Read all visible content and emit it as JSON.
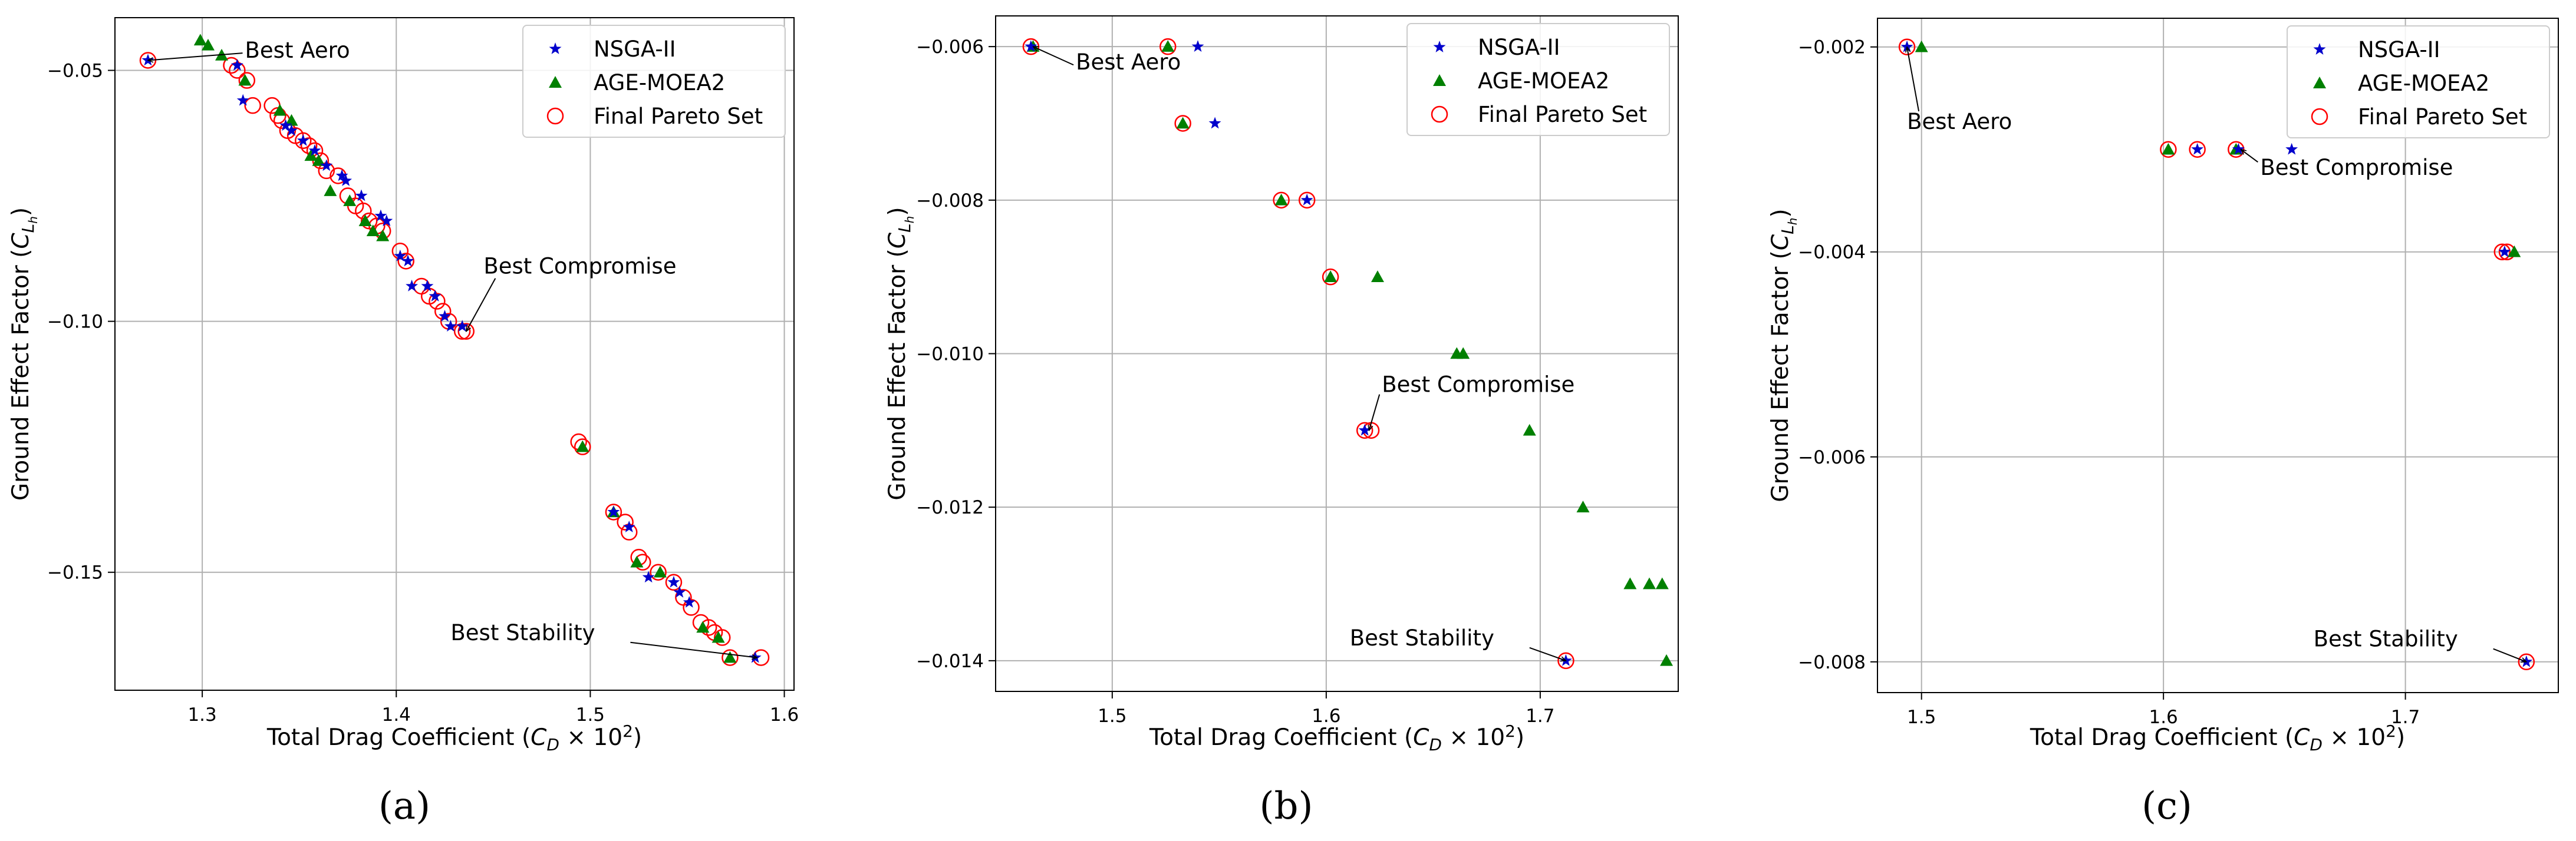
{
  "chart_data": [
    {
      "type": "scatter",
      "panel_label": "(a)",
      "xlabel": "Total Drag Coefficient (C_D × 10²)",
      "ylabel": "Ground Effect Factor (C_{L_h})",
      "xlim": [
        1.255,
        1.605
      ],
      "ylim": [
        -0.1735,
        -0.0395
      ],
      "xticks": [
        1.3,
        1.4,
        1.5,
        1.6
      ],
      "yticks": [
        -0.05,
        -0.1,
        -0.15
      ],
      "ytick_labels": [
        "−0.05",
        "−0.10",
        "−0.15"
      ],
      "grid": true,
      "legend": {
        "position": "top-right",
        "entries": [
          "NSGA-II",
          "AGE-MOEA2",
          "Final Pareto Set"
        ]
      },
      "series": [
        {
          "name": "NSGA-II",
          "marker": "star",
          "color": "#0000cc",
          "points": [
            [
              1.272,
              -0.048
            ],
            [
              1.318,
              -0.049
            ],
            [
              1.321,
              -0.056
            ],
            [
              1.343,
              -0.061
            ],
            [
              1.346,
              -0.062
            ],
            [
              1.352,
              -0.064
            ],
            [
              1.358,
              -0.066
            ],
            [
              1.364,
              -0.069
            ],
            [
              1.372,
              -0.071
            ],
            [
              1.374,
              -0.072
            ],
            [
              1.382,
              -0.075
            ],
            [
              1.392,
              -0.079
            ],
            [
              1.395,
              -0.08
            ],
            [
              1.402,
              -0.087
            ],
            [
              1.406,
              -0.088
            ],
            [
              1.408,
              -0.093
            ],
            [
              1.416,
              -0.093
            ],
            [
              1.42,
              -0.095
            ],
            [
              1.425,
              -0.099
            ],
            [
              1.428,
              -0.101
            ],
            [
              1.434,
              -0.101
            ],
            [
              1.512,
              -0.138
            ],
            [
              1.52,
              -0.141
            ],
            [
              1.53,
              -0.151
            ],
            [
              1.543,
              -0.152
            ],
            [
              1.546,
              -0.154
            ],
            [
              1.551,
              -0.156
            ],
            [
              1.585,
              -0.167
            ]
          ]
        },
        {
          "name": "AGE-MOEA2",
          "marker": "triangle",
          "color": "#008000",
          "points": [
            [
              1.299,
              -0.044
            ],
            [
              1.303,
              -0.045
            ],
            [
              1.31,
              -0.047
            ],
            [
              1.322,
              -0.052
            ],
            [
              1.34,
              -0.058
            ],
            [
              1.346,
              -0.06
            ],
            [
              1.356,
              -0.067
            ],
            [
              1.36,
              -0.068
            ],
            [
              1.366,
              -0.074
            ],
            [
              1.376,
              -0.076
            ],
            [
              1.384,
              -0.08
            ],
            [
              1.388,
              -0.082
            ],
            [
              1.393,
              -0.083
            ],
            [
              1.496,
              -0.125
            ],
            [
              1.512,
              -0.138
            ],
            [
              1.524,
              -0.148
            ],
            [
              1.536,
              -0.15
            ],
            [
              1.558,
              -0.161
            ],
            [
              1.566,
              -0.163
            ],
            [
              1.572,
              -0.167
            ]
          ]
        },
        {
          "name": "Final Pareto Set",
          "marker": "circle",
          "color": "#ff0000",
          "points": [
            [
              1.272,
              -0.048
            ],
            [
              1.315,
              -0.049
            ],
            [
              1.318,
              -0.05
            ],
            [
              1.323,
              -0.052
            ],
            [
              1.326,
              -0.057
            ],
            [
              1.336,
              -0.057
            ],
            [
              1.339,
              -0.059
            ],
            [
              1.341,
              -0.06
            ],
            [
              1.344,
              -0.062
            ],
            [
              1.348,
              -0.063
            ],
            [
              1.352,
              -0.064
            ],
            [
              1.355,
              -0.065
            ],
            [
              1.358,
              -0.066
            ],
            [
              1.361,
              -0.068
            ],
            [
              1.364,
              -0.07
            ],
            [
              1.37,
              -0.071
            ],
            [
              1.375,
              -0.075
            ],
            [
              1.379,
              -0.077
            ],
            [
              1.383,
              -0.078
            ],
            [
              1.386,
              -0.08
            ],
            [
              1.39,
              -0.081
            ],
            [
              1.393,
              -0.082
            ],
            [
              1.402,
              -0.086
            ],
            [
              1.405,
              -0.088
            ],
            [
              1.413,
              -0.093
            ],
            [
              1.417,
              -0.095
            ],
            [
              1.421,
              -0.096
            ],
            [
              1.424,
              -0.098
            ],
            [
              1.427,
              -0.1
            ],
            [
              1.434,
              -0.102
            ],
            [
              1.436,
              -0.102
            ],
            [
              1.494,
              -0.124
            ],
            [
              1.496,
              -0.125
            ],
            [
              1.512,
              -0.138
            ],
            [
              1.518,
              -0.14
            ],
            [
              1.52,
              -0.142
            ],
            [
              1.525,
              -0.147
            ],
            [
              1.527,
              -0.148
            ],
            [
              1.535,
              -0.15
            ],
            [
              1.543,
              -0.152
            ],
            [
              1.548,
              -0.155
            ],
            [
              1.552,
              -0.157
            ],
            [
              1.557,
              -0.16
            ],
            [
              1.561,
              -0.161
            ],
            [
              1.564,
              -0.162
            ],
            [
              1.568,
              -0.163
            ],
            [
              1.572,
              -0.167
            ],
            [
              1.588,
              -0.167
            ]
          ]
        }
      ],
      "annotations": [
        {
          "text": "Best Aero",
          "point": [
            1.272,
            -0.048
          ],
          "text_at": [
            1.322,
            -0.0475
          ],
          "align": "start"
        },
        {
          "text": "Best Compromise",
          "point": [
            1.436,
            -0.102
          ],
          "text_at": [
            1.445,
            -0.0905
          ],
          "align": "start"
        },
        {
          "text": "Best Stability",
          "point": [
            1.586,
            -0.167
          ],
          "text_at": [
            1.428,
            -0.1635
          ],
          "align": "start"
        }
      ]
    },
    {
      "type": "scatter",
      "panel_label": "(b)",
      "xlabel": "Total Drag Coefficient (C_D × 10²)",
      "ylabel": "Ground Effect Factor (C_{L_h})",
      "xlim": [
        1.4455,
        1.7645
      ],
      "ylim": [
        -0.0144,
        -0.0056
      ],
      "xticks": [
        1.5,
        1.6,
        1.7
      ],
      "yticks": [
        -0.006,
        -0.008,
        -0.01,
        -0.012,
        -0.014
      ],
      "ytick_labels": [
        "−0.006",
        "−0.008",
        "−0.010",
        "−0.012",
        "−0.014"
      ],
      "grid": true,
      "legend": {
        "position": "top-right",
        "entries": [
          "NSGA-II",
          "AGE-MOEA2",
          "Final Pareto Set"
        ]
      },
      "series": [
        {
          "name": "NSGA-II",
          "marker": "star",
          "color": "#0000cc",
          "points": [
            [
              1.462,
              -0.006
            ],
            [
              1.54,
              -0.006
            ],
            [
              1.548,
              -0.007
            ],
            [
              1.591,
              -0.008
            ],
            [
              1.618,
              -0.011
            ],
            [
              1.712,
              -0.014
            ]
          ]
        },
        {
          "name": "AGE-MOEA2",
          "marker": "triangle",
          "color": "#008000",
          "points": [
            [
              1.463,
              -0.006
            ],
            [
              1.526,
              -0.006
            ],
            [
              1.533,
              -0.007
            ],
            [
              1.579,
              -0.008
            ],
            [
              1.602,
              -0.009
            ],
            [
              1.624,
              -0.009
            ],
            [
              1.661,
              -0.01
            ],
            [
              1.664,
              -0.01
            ],
            [
              1.695,
              -0.011
            ],
            [
              1.72,
              -0.012
            ],
            [
              1.742,
              -0.013
            ],
            [
              1.751,
              -0.013
            ],
            [
              1.757,
              -0.013
            ],
            [
              1.759,
              -0.014
            ]
          ]
        },
        {
          "name": "Final Pareto Set",
          "marker": "circle",
          "color": "#ff0000",
          "points": [
            [
              1.462,
              -0.006
            ],
            [
              1.526,
              -0.006
            ],
            [
              1.533,
              -0.007
            ],
            [
              1.579,
              -0.008
            ],
            [
              1.591,
              -0.008
            ],
            [
              1.602,
              -0.009
            ],
            [
              1.618,
              -0.011
            ],
            [
              1.621,
              -0.011
            ],
            [
              1.712,
              -0.014
            ]
          ]
        }
      ],
      "annotations": [
        {
          "text": "Best Aero",
          "point": [
            1.463,
            -0.006
          ],
          "text_at": [
            1.483,
            -0.0063
          ],
          "align": "start"
        },
        {
          "text": "Best Compromise",
          "point": [
            1.62,
            -0.011
          ],
          "text_at": [
            1.626,
            -0.0105
          ],
          "align": "start"
        },
        {
          "text": "Best Stability",
          "point": [
            1.712,
            -0.014
          ],
          "text_at": [
            1.611,
            -0.0138
          ],
          "align": "start"
        }
      ]
    },
    {
      "type": "scatter",
      "panel_label": "(c)",
      "xlabel": "Total Drag Coefficient (C_D × 10²)",
      "ylabel": "Ground Effect Factor (C_{L_h})",
      "xlim": [
        1.4818,
        1.7632
      ],
      "ylim": [
        -0.0083,
        -0.00172
      ],
      "xticks": [
        1.5,
        1.6,
        1.7
      ],
      "yticks": [
        -0.002,
        -0.004,
        -0.006,
        -0.008
      ],
      "ytick_labels": [
        "−0.002",
        "−0.004",
        "−0.006",
        "−0.008"
      ],
      "grid": true,
      "legend": {
        "position": "top-right",
        "entries": [
          "NSGA-II",
          "AGE-MOEA2",
          "Final Pareto Set"
        ]
      },
      "series": [
        {
          "name": "NSGA-II",
          "marker": "star",
          "color": "#0000cc",
          "points": [
            [
              1.494,
              -0.002
            ],
            [
              1.614,
              -0.003
            ],
            [
              1.631,
              -0.003
            ],
            [
              1.653,
              -0.003
            ],
            [
              1.741,
              -0.004
            ],
            [
              1.75,
              -0.008
            ]
          ]
        },
        {
          "name": "AGE-MOEA2",
          "marker": "triangle",
          "color": "#008000",
          "points": [
            [
              1.5,
              -0.002
            ],
            [
              1.602,
              -0.003
            ],
            [
              1.63,
              -0.003
            ],
            [
              1.745,
              -0.004
            ]
          ]
        },
        {
          "name": "Final Pareto Set",
          "marker": "circle",
          "color": "#ff0000",
          "points": [
            [
              1.494,
              -0.002
            ],
            [
              1.602,
              -0.003
            ],
            [
              1.614,
              -0.003
            ],
            [
              1.63,
              -0.003
            ],
            [
              1.74,
              -0.004
            ],
            [
              1.742,
              -0.004
            ],
            [
              1.75,
              -0.008
            ]
          ]
        }
      ],
      "annotations": [
        {
          "text": "Best Aero",
          "point": [
            1.494,
            -0.002
          ],
          "text_at": [
            1.494,
            -0.0028
          ],
          "align": "start"
        },
        {
          "text": "Best Compromise",
          "point": [
            1.632,
            -0.003
          ],
          "text_at": [
            1.64,
            -0.00325
          ],
          "align": "start"
        },
        {
          "text": "Best Stability",
          "point": [
            1.75,
            -0.008
          ],
          "text_at": [
            1.662,
            -0.00785
          ],
          "align": "start"
        }
      ]
    }
  ]
}
